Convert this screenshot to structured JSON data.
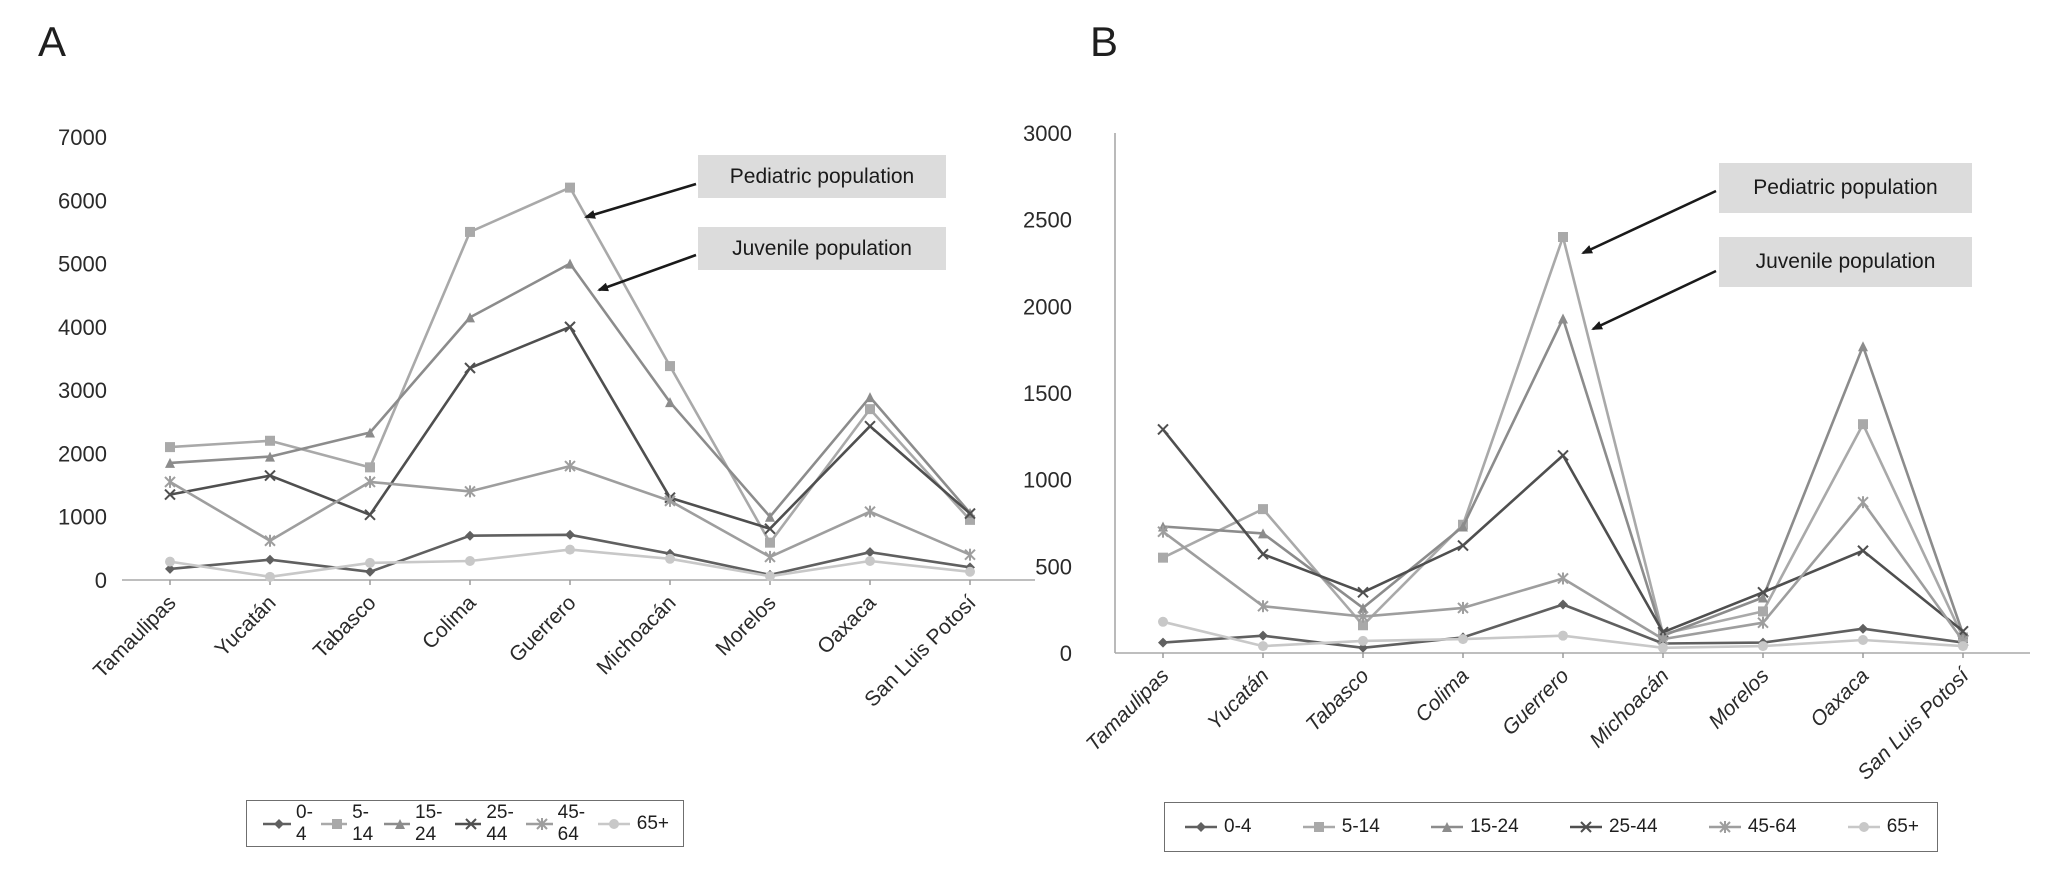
{
  "panels": [
    {
      "label": "A"
    },
    {
      "label": "B"
    }
  ],
  "chart_data": [
    {
      "id": "A",
      "type": "line",
      "title": "",
      "xlabel": "",
      "ylabel": "",
      "categories": [
        "Tamaulipas",
        "Yucatán",
        "Tabasco",
        "Colima",
        "Guerrero",
        "Michoacán",
        "Morelos",
        "Oaxaca",
        "San Luis Potosí"
      ],
      "ylim": [
        0,
        7000
      ],
      "y_ticks": [
        0,
        1000,
        2000,
        3000,
        4000,
        5000,
        6000,
        7000
      ],
      "grid": false,
      "legend_position": "bottom",
      "series": [
        {
          "name": "0-4",
          "marker": "diamond",
          "color": "#606060",
          "values": [
            175,
            320,
            130,
            700,
            715,
            415,
            80,
            440,
            200
          ]
        },
        {
          "name": "5-14",
          "marker": "square",
          "color": "#a9a9a9",
          "values": [
            2100,
            2200,
            1780,
            5500,
            6200,
            3380,
            590,
            2700,
            950
          ]
        },
        {
          "name": "15-24",
          "marker": "triangle",
          "color": "#8c8c8c",
          "values": [
            1850,
            1950,
            2330,
            4150,
            5000,
            2810,
            1000,
            2890,
            1060
          ]
        },
        {
          "name": "25-44",
          "marker": "x",
          "color": "#4f4f4f",
          "values": [
            1350,
            1650,
            1030,
            3350,
            4000,
            1300,
            810,
            2430,
            1050
          ]
        },
        {
          "name": "45-64",
          "marker": "asterisk",
          "color": "#9e9e9e",
          "values": [
            1550,
            620,
            1550,
            1400,
            1800,
            1250,
            365,
            1080,
            400
          ]
        },
        {
          "name": "65+",
          "marker": "circle",
          "color": "#c8c8c8",
          "values": [
            290,
            50,
            270,
            300,
            480,
            335,
            60,
            300,
            130
          ]
        }
      ],
      "annotations": [
        {
          "text": "Pediatric population"
        },
        {
          "text": "Juvenile population"
        }
      ]
    },
    {
      "id": "B",
      "type": "line",
      "title": "",
      "xlabel": "",
      "ylabel": "",
      "categories": [
        "Tamaulipas",
        "Yucatán",
        "Tabasco",
        "Colima",
        "Guerrero",
        "Michoacán",
        "Morelos",
        "Oaxaca",
        "San Luis Potosí"
      ],
      "ylim": [
        0,
        3000
      ],
      "y_ticks": [
        0,
        500,
        1000,
        1500,
        2000,
        2500,
        3000
      ],
      "grid": false,
      "legend_position": "bottom",
      "series": [
        {
          "name": "0-4",
          "marker": "diamond",
          "color": "#606060",
          "values": [
            60,
            100,
            30,
            90,
            280,
            55,
            60,
            140,
            60
          ]
        },
        {
          "name": "5-14",
          "marker": "square",
          "color": "#a9a9a9",
          "values": [
            550,
            830,
            160,
            740,
            2400,
            110,
            240,
            1320,
            90
          ]
        },
        {
          "name": "15-24",
          "marker": "triangle",
          "color": "#8c8c8c",
          "values": [
            730,
            690,
            260,
            730,
            1930,
            100,
            320,
            1770,
            110
          ]
        },
        {
          "name": "25-44",
          "marker": "x",
          "color": "#4f4f4f",
          "values": [
            1290,
            570,
            350,
            620,
            1140,
            120,
            350,
            590,
            125
          ]
        },
        {
          "name": "45-64",
          "marker": "asterisk",
          "color": "#9e9e9e",
          "values": [
            700,
            270,
            210,
            260,
            430,
            80,
            175,
            870,
            70
          ]
        },
        {
          "name": "65+",
          "marker": "circle",
          "color": "#c8c8c8",
          "values": [
            180,
            40,
            70,
            80,
            100,
            30,
            40,
            75,
            40
          ]
        }
      ],
      "annotations": [
        {
          "text": "Pediatric population"
        },
        {
          "text": "Juvenile population"
        }
      ]
    }
  ]
}
